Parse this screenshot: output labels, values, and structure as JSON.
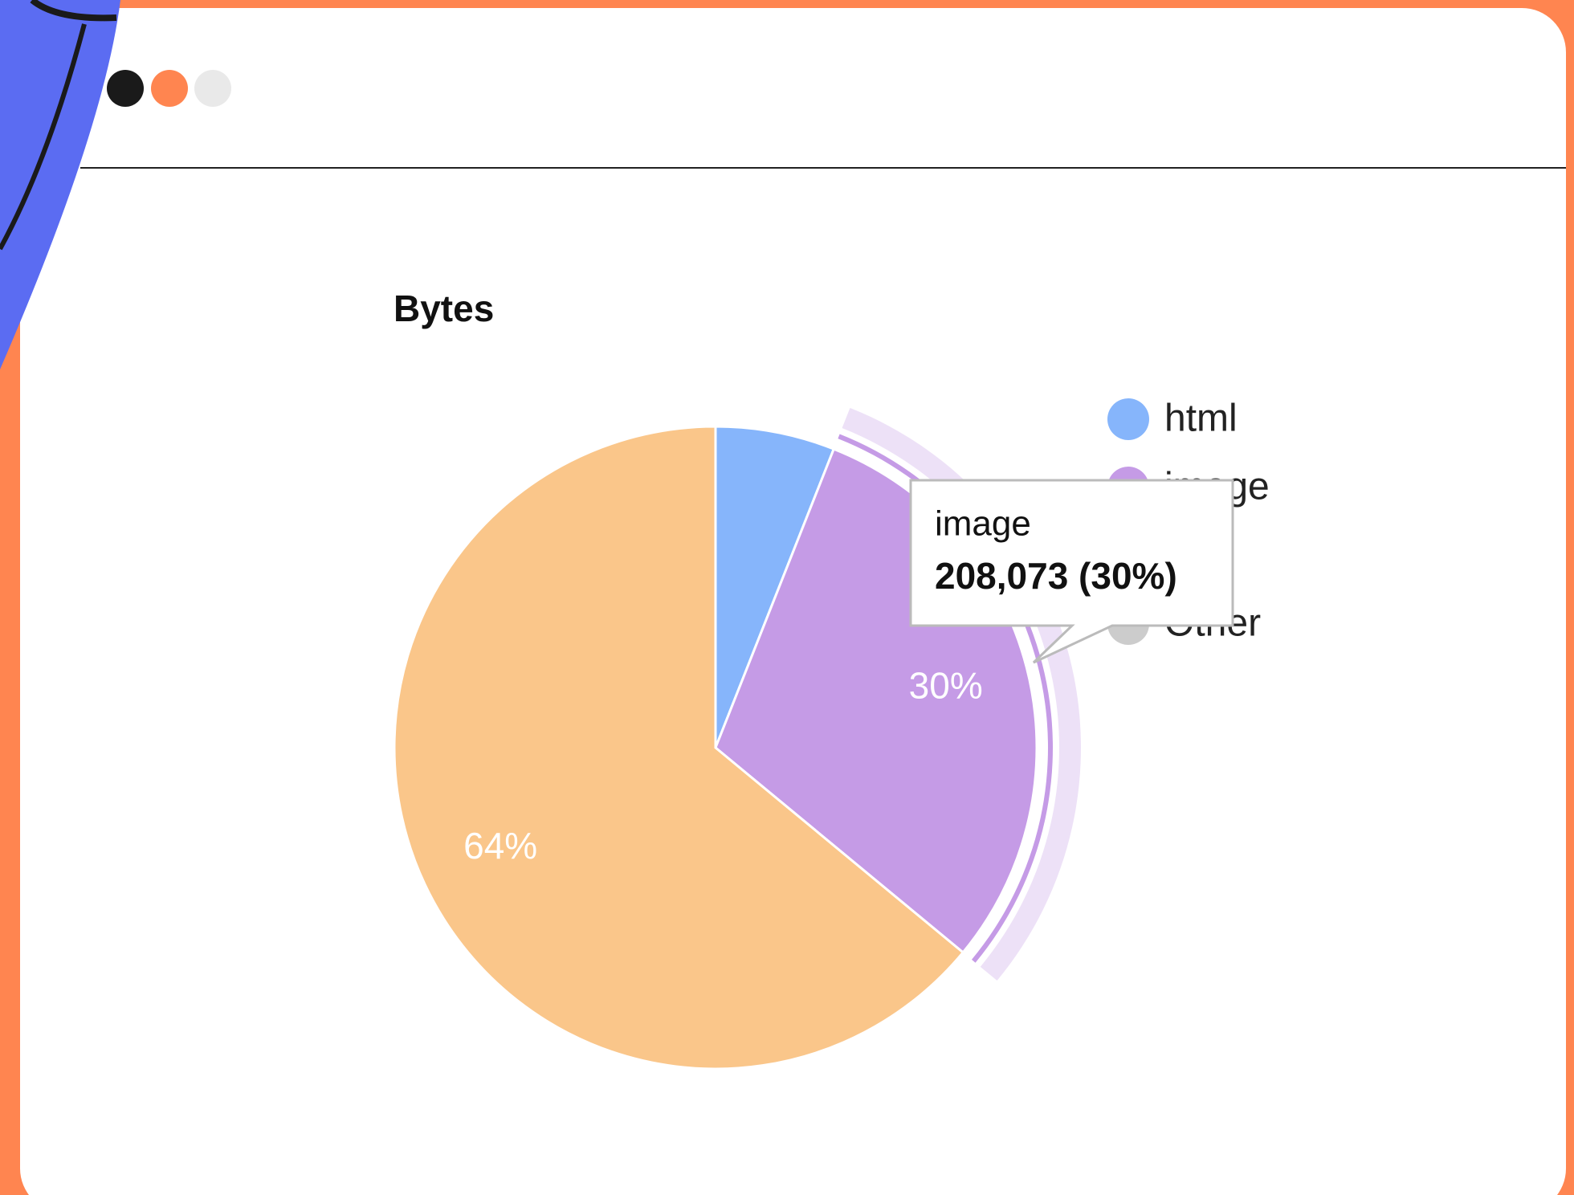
{
  "chart_data": {
    "type": "pie",
    "title": "Bytes",
    "categories": [
      "html",
      "image",
      null,
      "Other"
    ],
    "values": [
      6,
      30,
      64,
      0
    ],
    "value_labels": [
      null,
      "30%",
      "64%",
      null
    ],
    "colors": [
      "#86b5fb",
      "#c59be6",
      "#fac68a",
      "#cccccc"
    ],
    "highlight": 1,
    "tooltip": {
      "title": "image",
      "text": "208,073 (30%)"
    }
  }
}
